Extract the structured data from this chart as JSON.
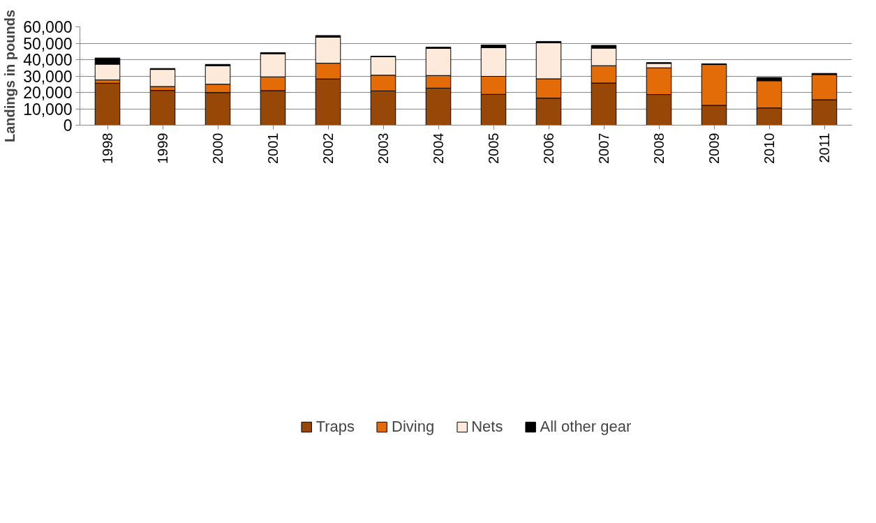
{
  "chart_data": {
    "type": "bar",
    "stacked": true,
    "ylabel": "Landings in pounds",
    "categories": [
      "1998",
      "1999",
      "2000",
      "2001",
      "2002",
      "2003",
      "2004",
      "2005",
      "2006",
      "2007",
      "2008",
      "2009",
      "2010",
      "2011"
    ],
    "series": [
      {
        "name": "Traps",
        "color": "#974706",
        "values": [
          25600,
          21200,
          19900,
          21100,
          28200,
          20900,
          22600,
          18800,
          16500,
          25700,
          18700,
          12100,
          10500,
          15500
        ]
      },
      {
        "name": "Diving",
        "color": "#e36c09",
        "values": [
          2000,
          2400,
          5100,
          8400,
          9600,
          9600,
          7700,
          11000,
          11800,
          10600,
          16300,
          24900,
          16600,
          15400
        ]
      },
      {
        "name": "Nets",
        "color": "#fdeada",
        "values": [
          9600,
          10400,
          11200,
          14100,
          15900,
          11300,
          16600,
          17500,
          21900,
          10700,
          2700,
          100,
          null,
          null
        ]
      },
      {
        "name": "All other gear",
        "color": "#000000",
        "values": [
          3800,
          600,
          900,
          700,
          1000,
          300,
          700,
          1600,
          900,
          1700,
          500,
          300,
          2000,
          700
        ]
      }
    ],
    "ylim": [
      0,
      60000
    ],
    "yticks": [
      {
        "value": 0,
        "label": "0"
      },
      {
        "value": 10000,
        "label": "10,000"
      },
      {
        "value": 20000,
        "label": "20,000"
      },
      {
        "value": 30000,
        "label": "30,000"
      },
      {
        "value": 40000,
        "label": "40,000"
      },
      {
        "value": 50000,
        "label": "50,000"
      },
      {
        "value": 60000,
        "label": "60,000"
      }
    ],
    "grid": "y",
    "legend": "bottom"
  }
}
